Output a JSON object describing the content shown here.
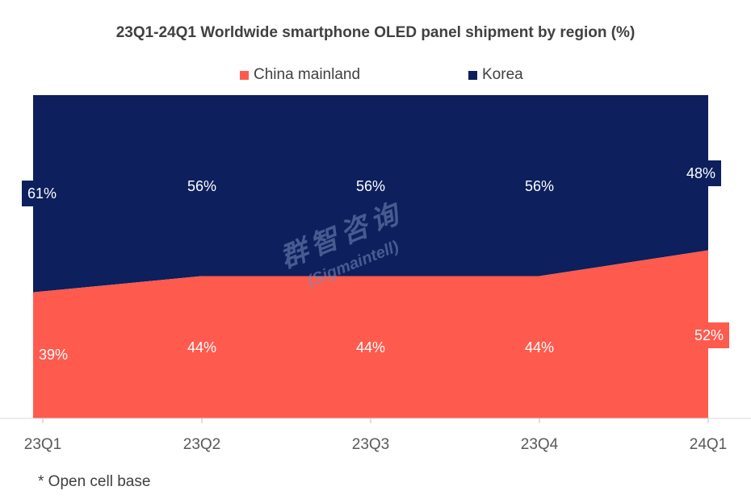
{
  "chart_data": {
    "type": "area",
    "title": "23Q1-24Q1 Worldwide smartphone OLED panel shipment by region (%)",
    "categories": [
      "23Q1",
      "23Q2",
      "23Q3",
      "23Q4",
      "24Q1"
    ],
    "series": [
      {
        "name": "China mainland",
        "values": [
          39,
          44,
          44,
          44,
          52
        ],
        "labels": [
          "39%",
          "44%",
          "44%",
          "44%",
          "52%"
        ],
        "color": "#ff5a4e"
      },
      {
        "name": "Korea",
        "values": [
          61,
          56,
          56,
          56,
          48
        ],
        "labels": [
          "61%",
          "56%",
          "56%",
          "56%",
          "48%"
        ],
        "color": "#0d1f5c"
      }
    ],
    "ylim": [
      0,
      100
    ],
    "stacked": true,
    "legend_position": "top"
  },
  "watermark": {
    "cn": "群智咨询",
    "en": "(Sigmaintell)"
  },
  "footnote": "* Open cell base"
}
